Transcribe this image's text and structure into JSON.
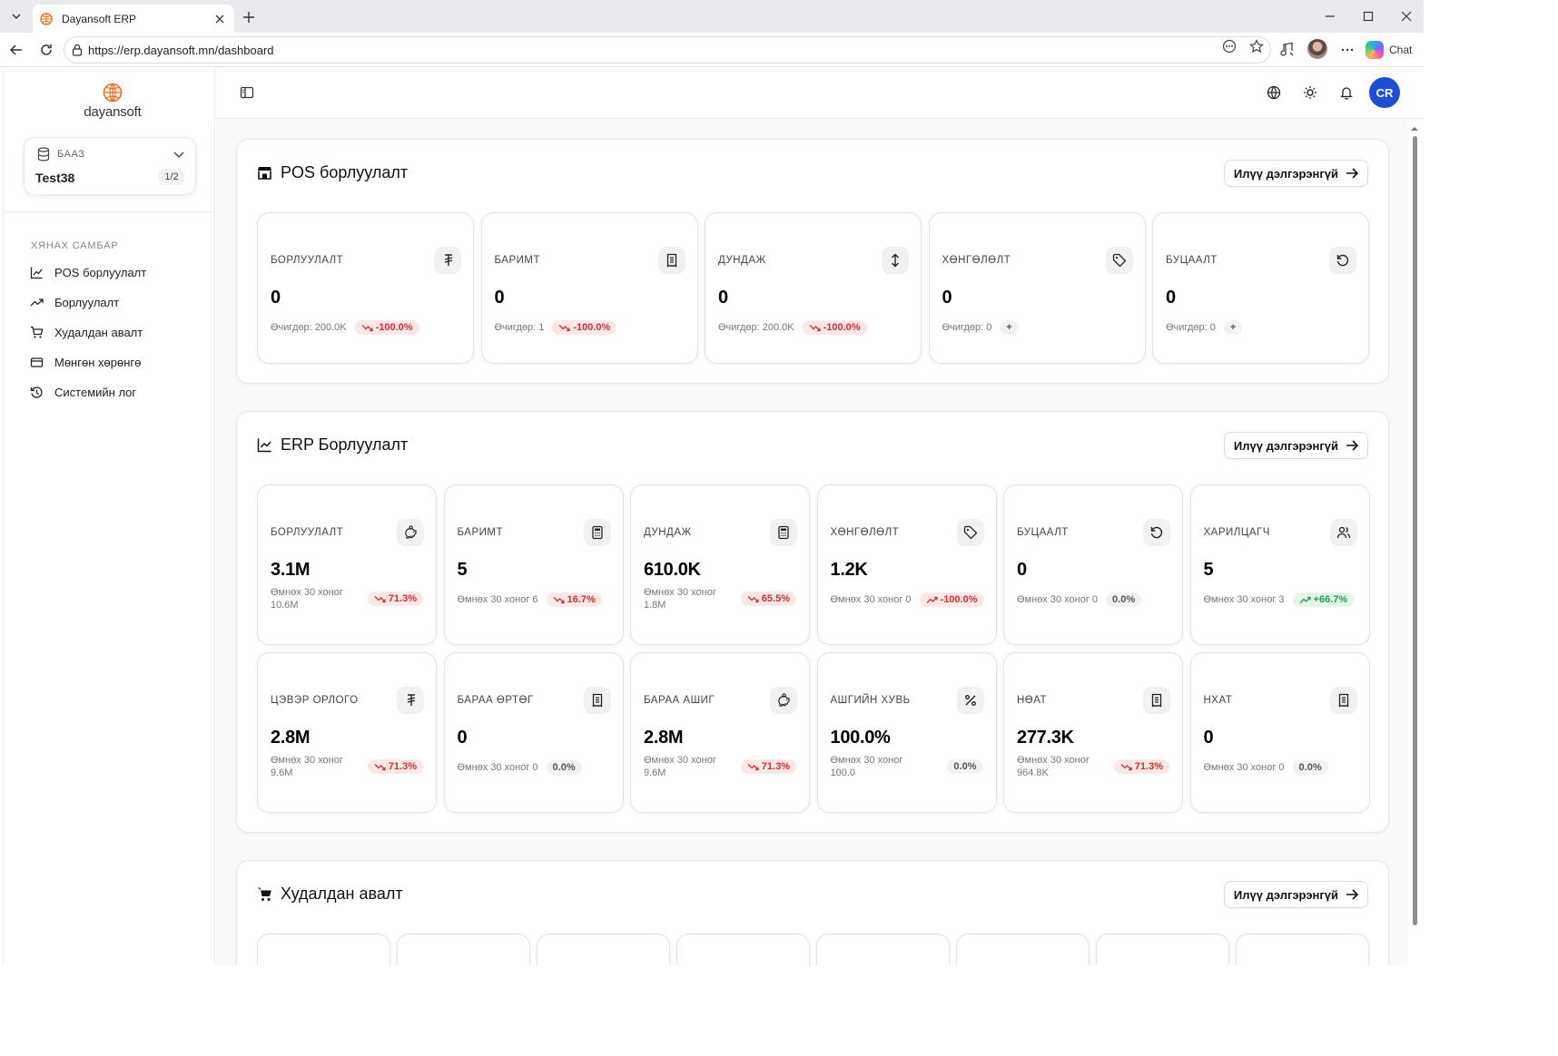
{
  "browser": {
    "tab_title": "Dayansoft ERP",
    "url": "https://erp.dayansoft.mn/dashboard",
    "chat_label": "Chat"
  },
  "sidebar": {
    "logo_text": "dayansoft",
    "db": {
      "label": "БААЗ",
      "name": "Test38",
      "page": "1/2"
    },
    "section_title": "ХЯНАХ САМБАР",
    "items": [
      {
        "label": "POS борлуулалт",
        "icon": "chart-line-icon"
      },
      {
        "label": "Борлуулалт",
        "icon": "trending-up-icon"
      },
      {
        "label": "Худалдан авалт",
        "icon": "cart-icon"
      },
      {
        "label": "Мөнгөн хөрөнгө",
        "icon": "wallet-icon"
      },
      {
        "label": "Системийн лог",
        "icon": "history-icon"
      }
    ]
  },
  "topbar": {
    "avatar": "CR"
  },
  "pos": {
    "title": "POS борлуулалт",
    "more": "Илүү дэлгэрэнгүй",
    "cards": [
      {
        "label": "БОРЛУУЛАЛТ",
        "icon": "tugrik-icon",
        "value": "0",
        "sub": "Өчигдөр: 200.0K",
        "change": "-100.0%",
        "trend": "down",
        "tone": "red"
      },
      {
        "label": "БАРИМТ",
        "icon": "receipt-icon",
        "value": "0",
        "sub": "Өчигдөр: 1",
        "change": "-100.0%",
        "trend": "down",
        "tone": "red"
      },
      {
        "label": "ДУНДАЖ",
        "icon": "updown-arrow-icon",
        "value": "0",
        "sub": "Өчигдөр: 200.0K",
        "change": "-100.0%",
        "trend": "down",
        "tone": "red"
      },
      {
        "label": "ХӨНГӨЛӨЛТ",
        "icon": "tag-icon",
        "value": "0",
        "sub": "Өчигдөр: 0",
        "change": "+",
        "trend": "none",
        "tone": "gray"
      },
      {
        "label": "БУЦААЛТ",
        "icon": "undo-icon",
        "value": "0",
        "sub": "Өчигдөр: 0",
        "change": "+",
        "trend": "none",
        "tone": "gray"
      }
    ]
  },
  "erp": {
    "title": "ERP Борлуулалт",
    "more": "Илүү дэлгэрэнгүй",
    "cards": [
      {
        "label": "БОРЛУУЛАЛТ",
        "icon": "piggy-bank-icon",
        "value": "3.1M",
        "sub": "Өмнөх 30 хоног 10.6M",
        "change": "71.3%",
        "trend": "down",
        "tone": "red"
      },
      {
        "label": "БАРИМТ",
        "icon": "calculator-icon",
        "value": "5",
        "sub": "Өмнөх 30 хоног 6",
        "change": "16.7%",
        "trend": "down",
        "tone": "red"
      },
      {
        "label": "ДУНДАЖ",
        "icon": "calculator-icon",
        "value": "610.0K",
        "sub": "Өмнөх 30 хоног 1.8M",
        "change": "65.5%",
        "trend": "down",
        "tone": "red"
      },
      {
        "label": "ХӨНГӨЛӨЛТ",
        "icon": "tag-icon",
        "value": "1.2K",
        "sub": "Өмнөх 30 хоног 0",
        "change": "-100.0%",
        "trend": "up",
        "tone": "red"
      },
      {
        "label": "БУЦААЛТ",
        "icon": "undo-icon",
        "value": "0",
        "sub": "Өмнөх 30 хоног 0",
        "change": "0.0%",
        "trend": "none",
        "tone": "gray"
      },
      {
        "label": "ХАРИЛЦАГЧ",
        "icon": "users-icon",
        "value": "5",
        "sub": "Өмнөх 30 хоног 3",
        "change": "+66.7%",
        "trend": "up",
        "tone": "green"
      },
      {
        "label": "ЦЭВЭР ОРЛОГО",
        "icon": "tugrik-icon",
        "value": "2.8M",
        "sub": "Өмнөх 30 хоног 9.6M",
        "change": "71.3%",
        "trend": "down",
        "tone": "red"
      },
      {
        "label": "БАРАА ӨРТӨГ",
        "icon": "receipt-icon",
        "value": "0",
        "sub": "Өмнөх 30 хоног 0",
        "change": "0.0%",
        "trend": "none",
        "tone": "gray"
      },
      {
        "label": "БАРАА АШИГ",
        "icon": "piggy-bank-icon",
        "value": "2.8M",
        "sub": "Өмнөх 30 хоног 9.6M",
        "change": "71.3%",
        "trend": "down",
        "tone": "red"
      },
      {
        "label": "АШГИЙН ХУВЬ",
        "icon": "percent-icon",
        "value": "100.0%",
        "sub": "Өмнөх 30 хоног 100.0",
        "change": "0.0%",
        "trend": "none",
        "tone": "gray"
      },
      {
        "label": "НӨАТ",
        "icon": "receipt-icon",
        "value": "277.3K",
        "sub": "Өмнөх 30 хоног 964.8K",
        "change": "71.3%",
        "trend": "down",
        "tone": "red"
      },
      {
        "label": "НХАТ",
        "icon": "receipt-icon",
        "value": "0",
        "sub": "Өмнөх 30 хоног 0",
        "change": "0.0%",
        "trend": "none",
        "tone": "gray"
      }
    ]
  },
  "purchase": {
    "title": "Худалдан авалт",
    "more": "Илүү дэлгэрэнгүй"
  },
  "colors": {
    "accent": "#1d4ed8",
    "logo": "#f26b1d",
    "down": "#d32f2f",
    "up": "#1f9d55"
  }
}
